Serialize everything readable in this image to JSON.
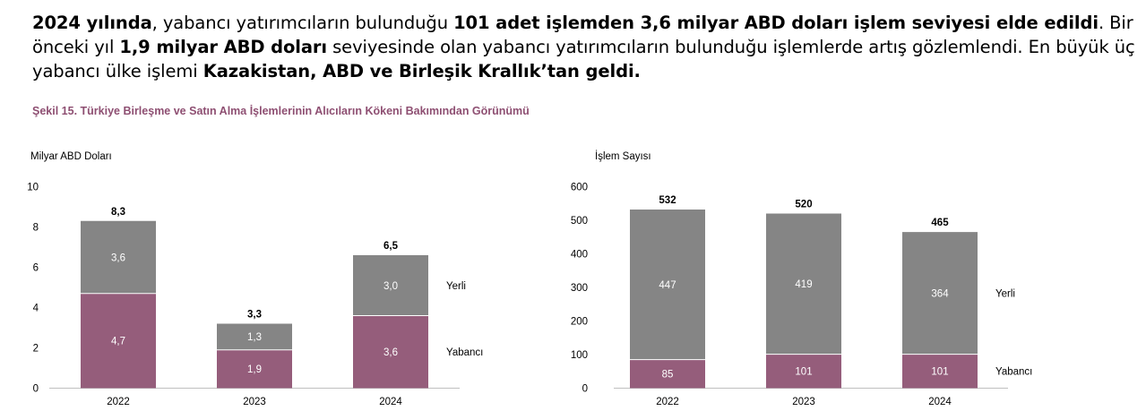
{
  "paragraph": {
    "s1_bold": "2024 yılında",
    "s2": ", yabancı yatırımcıların bulunduğu ",
    "s3_bold": "101 adet işlemden 3,6 milyar ABD doları işlem seviyesi elde edildi",
    "s4": ". Bir önceki yıl ",
    "s5_bold": "1,9 milyar ABD doları",
    "s6": " seviyesinde olan yabancı yatırımcıların bulunduğu işlemlerde artış gözlemlendi. En büyük üç yabancı ülke işlemi ",
    "s7_bold": "Kazakistan, ABD ve Birleşik Krallık’tan geldi."
  },
  "figure_caption": "Şekil 15. Türkiye Birleşme ve Satın Alma İşlemlerinin  Alıcıların Kökeni Bakımından Görünümü",
  "colors": {
    "yerli": "#858585",
    "yabanci": "#955d7b",
    "caption": "#8e4f72"
  },
  "chart_data": [
    {
      "type": "bar",
      "stacked": true,
      "ylabel": "Milyar ABD Doları",
      "ylim": [
        0,
        10
      ],
      "yticks": [
        "0",
        "2",
        "4",
        "6",
        "8",
        "10"
      ],
      "categories": [
        "2022",
        "2023",
        "2024"
      ],
      "series": [
        {
          "name": "Yabancı",
          "values": [
            4.7,
            1.9,
            3.6
          ],
          "labels": [
            "4,7",
            "1,9",
            "3,6"
          ]
        },
        {
          "name": "Yerli",
          "values": [
            3.6,
            1.3,
            3.0
          ],
          "labels": [
            "3,6",
            "1,3",
            "3,0"
          ]
        }
      ],
      "totals": [
        "8,3",
        "3,3",
        "6,5"
      ],
      "legend": "right"
    },
    {
      "type": "bar",
      "stacked": true,
      "ylabel": "İşlem Sayısı",
      "ylim": [
        0,
        600
      ],
      "yticks": [
        "0",
        "100",
        "200",
        "300",
        "400",
        "500",
        "600"
      ],
      "categories": [
        "2022",
        "2023",
        "2024"
      ],
      "series": [
        {
          "name": "Yabancı",
          "values": [
            85,
            101,
            101
          ],
          "labels": [
            "85",
            "101",
            "101"
          ]
        },
        {
          "name": "Yerli",
          "values": [
            447,
            419,
            364
          ],
          "labels": [
            "447",
            "419",
            "364"
          ]
        }
      ],
      "totals": [
        "532",
        "520",
        "465"
      ],
      "legend": "right"
    }
  ]
}
